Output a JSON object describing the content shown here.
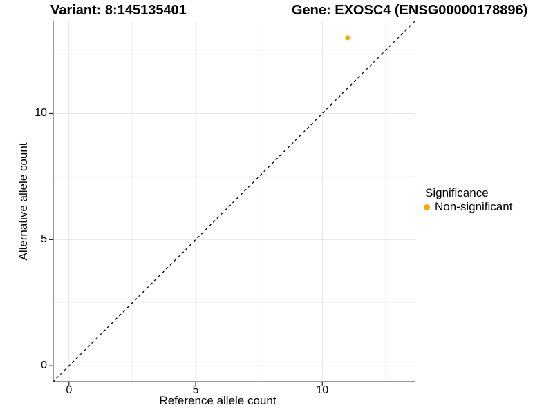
{
  "header": {
    "variant_title": "Variant: 8:145135401",
    "gene_title": "Gene: EXOSC4 (ENSG00000178896)"
  },
  "legend": {
    "title": "Significance",
    "entries": [
      {
        "label": "Non-significant",
        "color": "#FFA500"
      }
    ]
  },
  "chart_data": {
    "type": "scatter",
    "title": "Variant: 8:145135401 — Gene: EXOSC4 (ENSG00000178896)",
    "xlabel": "Reference allele count",
    "ylabel": "Alternative allele count",
    "xlim": [
      -0.65,
      13.65
    ],
    "ylim": [
      -0.65,
      13.65
    ],
    "x_ticks": [
      0,
      5,
      10
    ],
    "y_ticks": [
      0,
      5,
      10
    ],
    "x_minor_ticks": [
      2.5,
      7.5,
      12.5
    ],
    "y_minor_ticks": [
      2.5,
      7.5,
      12.5
    ],
    "grid": true,
    "legend_position": "right",
    "series": [
      {
        "name": "Non-significant",
        "color": "#FFA500",
        "points": [
          {
            "x": 11,
            "y": 13
          }
        ]
      }
    ],
    "reference_line": {
      "type": "identity",
      "slope": 1,
      "intercept": 0,
      "style": "dashed",
      "color": "#000000"
    },
    "colors": {
      "grid_major": "#E6E6E6",
      "grid_minor": "#F2F2F2",
      "axis": "#2F2F2F",
      "point": "#FFA500"
    }
  }
}
